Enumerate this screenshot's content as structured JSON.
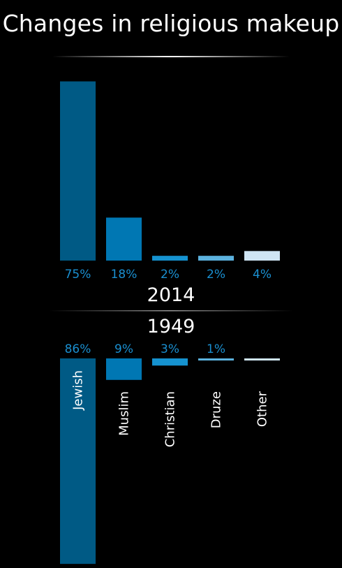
{
  "chart_data": {
    "type": "bar",
    "title": "Changes in religious makeup",
    "categories": [
      "Jewish",
      "Muslim",
      "Christian",
      "Druze",
      "Other"
    ],
    "series": [
      {
        "name": "2014",
        "values": [
          75,
          18,
          2,
          2,
          4
        ],
        "labels": [
          "75%",
          "18%",
          "2%",
          "2%",
          "4%"
        ]
      },
      {
        "name": "1949",
        "values": [
          86,
          9,
          3,
          1,
          1
        ],
        "labels": [
          "86%",
          "9%",
          "3%",
          "1%",
          ""
        ]
      }
    ],
    "colors": [
      "#005a85",
      "#0077b3",
      "#1592cf",
      "#5cb2de",
      "#cfe5f4"
    ],
    "label_color": "#1a8fd0",
    "ylim": [
      0,
      100
    ]
  }
}
